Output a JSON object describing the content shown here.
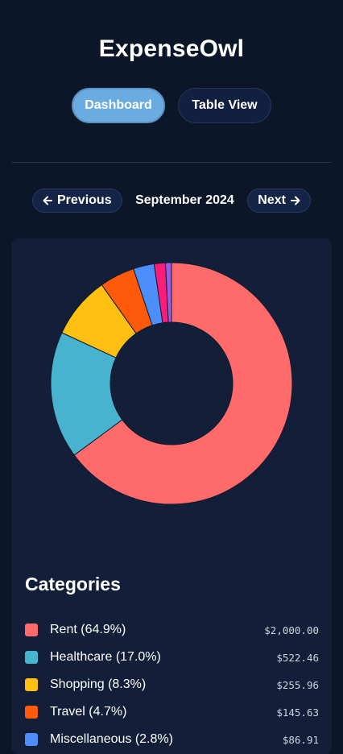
{
  "app": {
    "title": "ExpenseOwl"
  },
  "tabs": [
    {
      "label": "Dashboard",
      "active": true
    },
    {
      "label": "Table View",
      "active": false
    }
  ],
  "month_nav": {
    "previous_label": "Previous",
    "previous_icon": "arrow-left-icon",
    "current_month": "September 2024",
    "next_label": "Next",
    "next_icon": "arrow-right-icon"
  },
  "categories": {
    "title": "Categories",
    "items": [
      {
        "name": "Rent (64.9%)",
        "amount": "$2,000.00",
        "color": "#ff6b6b"
      },
      {
        "name": "Healthcare (17.0%)",
        "amount": "$522.46",
        "color": "#48b3cf"
      },
      {
        "name": "Shopping (8.3%)",
        "amount": "$255.96",
        "color": "#ffc013"
      },
      {
        "name": "Travel (4.7%)",
        "amount": "$145.63",
        "color": "#ff5a0a"
      },
      {
        "name": "Miscellaneous (2.8%)",
        "amount": "$86.91",
        "color": "#4c8ffb"
      }
    ]
  },
  "chart_data": {
    "type": "pie",
    "donut": true,
    "categories": [
      "Rent",
      "Healthcare",
      "Shopping",
      "Travel",
      "Miscellaneous",
      "",
      ""
    ],
    "values": [
      64.9,
      17.0,
      8.3,
      4.7,
      2.8,
      1.5,
      0.8
    ],
    "colors": [
      "#ff6b6b",
      "#48b3cf",
      "#ffc013",
      "#ff5a0a",
      "#4c8ffb",
      "#ff1b7a",
      "#9b5de5"
    ],
    "legend": "below"
  }
}
